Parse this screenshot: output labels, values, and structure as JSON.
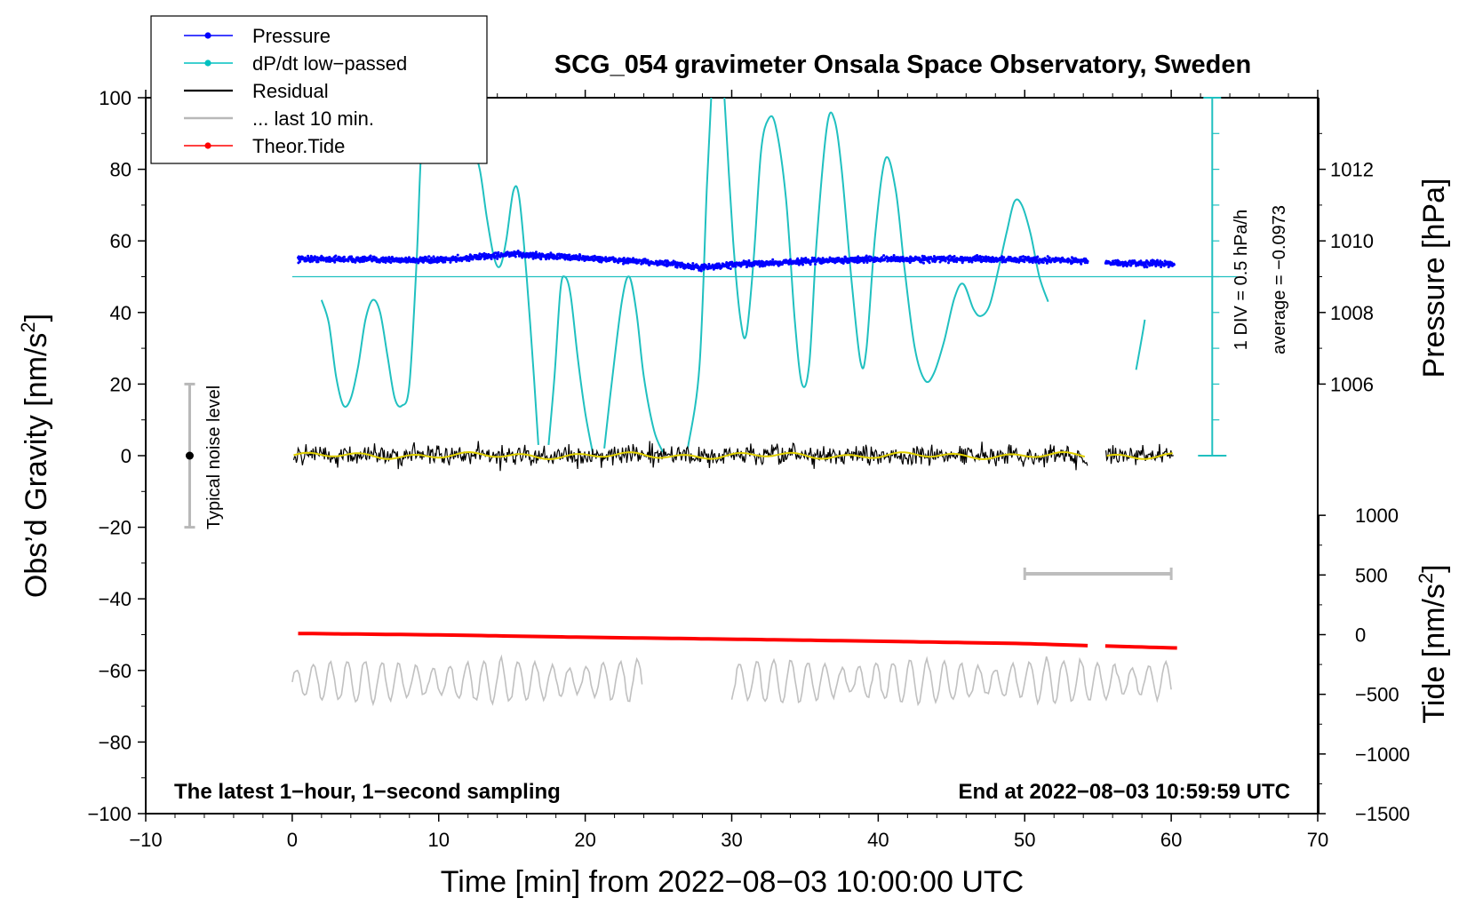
{
  "chart_data": {
    "type": "line",
    "title": "SCG_054 gravimeter Onsala Space Observatory, Sweden",
    "xlabel": "Time [min] from 2022−08−03 10:00:00 UTC",
    "ylabel_left_main": "Obs’d Gravity [nm/s",
    "ylabel_left_sup": "2",
    "ylabel_left_end": "]",
    "ylabel_pressure": "Pressure [hPa]",
    "ylabel_tide_main": "Tide [nm/s",
    "ylabel_tide_sup": "2",
    "ylabel_tide_end": "]",
    "xlim": [
      -10,
      70
    ],
    "ylim": [
      -100,
      100
    ],
    "x_ticks": [
      -10,
      0,
      10,
      20,
      30,
      40,
      50,
      60,
      70
    ],
    "x_tick_labels": [
      "−10",
      "0",
      "10",
      "20",
      "30",
      "40",
      "50",
      "60",
      "70"
    ],
    "y_ticks": [
      100,
      80,
      60,
      40,
      20,
      0,
      -20,
      -40,
      -60,
      -80,
      -100
    ],
    "y_tick_labels": [
      "100",
      "80",
      "60",
      "40",
      "20",
      "0",
      "−20",
      "−40",
      "−60",
      "−80",
      "−100"
    ],
    "pressure_axis": {
      "ticks": [
        1012,
        1010,
        1008,
        1006
      ],
      "tick_labels": [
        "1012",
        "1010",
        "1008",
        "1006"
      ],
      "gravity_at_1006": 20,
      "gravity_per_hpa": 10
    },
    "tide_axis": {
      "ticks": [
        1000,
        500,
        0,
        -500,
        -1000,
        -1500
      ],
      "tick_labels": [
        "1000",
        "500",
        "0",
        "−500",
        "−1000",
        "−1500"
      ],
      "gravity_at_0": -50,
      "gravity_per_500": 16.67
    },
    "dpdt_scale": {
      "label": "1 DIV = 0.5 hPa/h",
      "average": "average = −0.0973",
      "x": 62.8,
      "y_range": [
        0,
        100
      ],
      "baseline": 50
    },
    "noise_bar": {
      "label": "Typical noise level",
      "x": -7,
      "y_center": 0,
      "y_range": [
        -20,
        20
      ]
    },
    "last10_marker": {
      "x_range": [
        50,
        60
      ],
      "y": -33
    },
    "notes": {
      "left": "The latest 1−hour, 1−second sampling",
      "right": "End at 2022−08−03 10:59:59 UTC"
    },
    "legend": [
      {
        "name": "Pressure",
        "color": "#0000ff",
        "style": "line-dot"
      },
      {
        "name": "dP/dt low−passed",
        "color": "#00c0c0",
        "style": "line-dot"
      },
      {
        "name": "Residual",
        "color": "#000000",
        "style": "line"
      },
      {
        "name": "... last 10 min.",
        "color": "#b8b8b8",
        "style": "line"
      },
      {
        "name": "Theor.Tide",
        "color": "#ff0000",
        "style": "line-dot"
      }
    ],
    "series": [
      {
        "name": "dP/dt low−passed",
        "color": "#20c0c0",
        "segments": [
          [
            [
              2,
              43.5
            ],
            [
              2.5,
              37
            ],
            [
              3,
              22
            ],
            [
              3.5,
              14
            ],
            [
              4,
              16
            ],
            [
              4.5,
              25
            ],
            [
              5,
              38
            ],
            [
              5.5,
              43.5
            ],
            [
              6,
              40
            ],
            [
              6.5,
              28
            ],
            [
              7,
              16
            ],
            [
              7.5,
              14
            ],
            [
              8,
              20
            ],
            [
              8.5,
              55
            ],
            [
              8.8,
              85
            ],
            [
              9.2,
              100
            ]
          ],
          [
            [
              12.3,
              86
            ],
            [
              12.8,
              80
            ],
            [
              13.3,
              66
            ],
            [
              13.8,
              55
            ],
            [
              14.2,
              53
            ],
            [
              14.6,
              60
            ],
            [
              15.1,
              74
            ],
            [
              15.5,
              72
            ],
            [
              16,
              50
            ],
            [
              16.5,
              22
            ],
            [
              16.8,
              3
            ]
          ],
          [
            [
              17.5,
              3
            ],
            [
              17.9,
              22
            ],
            [
              18.3,
              46
            ],
            [
              18.6,
              50
            ],
            [
              19,
              45
            ],
            [
              19.5,
              27
            ],
            [
              20,
              12
            ],
            [
              20.5,
              1
            ]
          ],
          [
            [
              21.3,
              2
            ],
            [
              21.8,
              20
            ],
            [
              22.5,
              43
            ],
            [
              23,
              50
            ],
            [
              23.5,
              40
            ],
            [
              24,
              22
            ],
            [
              24.7,
              7
            ],
            [
              25.3,
              1
            ]
          ],
          [
            [
              27,
              2
            ],
            [
              27.8,
              25
            ],
            [
              28.3,
              75
            ],
            [
              28.6,
              100
            ]
          ],
          [
            [
              29.5,
              100
            ],
            [
              30.1,
              60
            ],
            [
              30.6,
              38
            ],
            [
              31,
              34
            ],
            [
              31.5,
              55
            ],
            [
              32,
              85
            ],
            [
              32.5,
              94
            ],
            [
              33,
              92
            ],
            [
              33.7,
              72
            ],
            [
              34.3,
              38
            ],
            [
              34.8,
              20
            ],
            [
              35.3,
              26
            ],
            [
              35.8,
              60
            ],
            [
              36.5,
              92
            ],
            [
              37,
              94
            ],
            [
              37.5,
              80
            ],
            [
              38.2,
              48
            ],
            [
              38.8,
              26
            ],
            [
              39.2,
              30
            ],
            [
              39.8,
              62
            ],
            [
              40.5,
              83
            ],
            [
              41.2,
              74
            ],
            [
              41.8,
              52
            ],
            [
              42.5,
              30
            ],
            [
              43.2,
              21
            ],
            [
              43.8,
              23
            ],
            [
              44.5,
              32
            ],
            [
              45.2,
              44
            ],
            [
              45.8,
              48
            ],
            [
              46.5,
              41
            ],
            [
              47,
              39
            ],
            [
              47.6,
              42
            ],
            [
              48.2,
              52
            ],
            [
              48.8,
              63
            ],
            [
              49.3,
              71
            ],
            [
              49.8,
              70
            ],
            [
              50.4,
              62
            ],
            [
              51,
              50
            ],
            [
              51.6,
              43
            ]
          ],
          [
            [
              57.6,
              24
            ],
            [
              58,
              33
            ],
            [
              58.2,
              38
            ]
          ]
        ]
      },
      {
        "name": "Pressure",
        "color": "#0000ff",
        "x_range": [
          0.4,
          60.2
        ],
        "gap": [
          54.3,
          55.5
        ],
        "profile": [
          [
            0.4,
            55
          ],
          [
            5,
            54.8
          ],
          [
            10,
            54.6
          ],
          [
            15,
            56.3
          ],
          [
            20,
            55.2
          ],
          [
            25,
            53.9
          ],
          [
            28,
            52.5
          ],
          [
            30,
            53.3
          ],
          [
            35,
            54.3
          ],
          [
            40,
            54.9
          ],
          [
            45,
            54.9
          ],
          [
            50,
            54.8
          ],
          [
            54,
            54.5
          ],
          [
            56,
            53.7
          ],
          [
            60,
            53.7
          ]
        ],
        "spread": 1.2
      },
      {
        "name": "Residual",
        "color": "#000000",
        "smooth_color": "#e0d000",
        "x_range": [
          0.1,
          60.2
        ],
        "gap": [
          54.3,
          55.5
        ],
        "center": 0,
        "amplitude": 4.5
      },
      {
        "name": "Theor.Tide",
        "color": "#ff0000",
        "x_range": [
          0.4,
          60.4
        ],
        "gap": [
          54.3,
          55.5
        ],
        "tide_values": [
          [
            0.4,
            10
          ],
          [
            10,
            -2
          ],
          [
            20,
            -22
          ],
          [
            30,
            -38
          ],
          [
            40,
            -55
          ],
          [
            50,
            -75
          ],
          [
            54.3,
            -92
          ],
          [
            55.5,
            -95
          ],
          [
            60.4,
            -112
          ]
        ]
      },
      {
        "name": "... last 10 min.",
        "color": "#c0c0c0",
        "segments_x": [
          [
            0,
            24
          ],
          [
            30,
            60
          ]
        ],
        "center": -63,
        "amplitude": 6
      }
    ]
  }
}
